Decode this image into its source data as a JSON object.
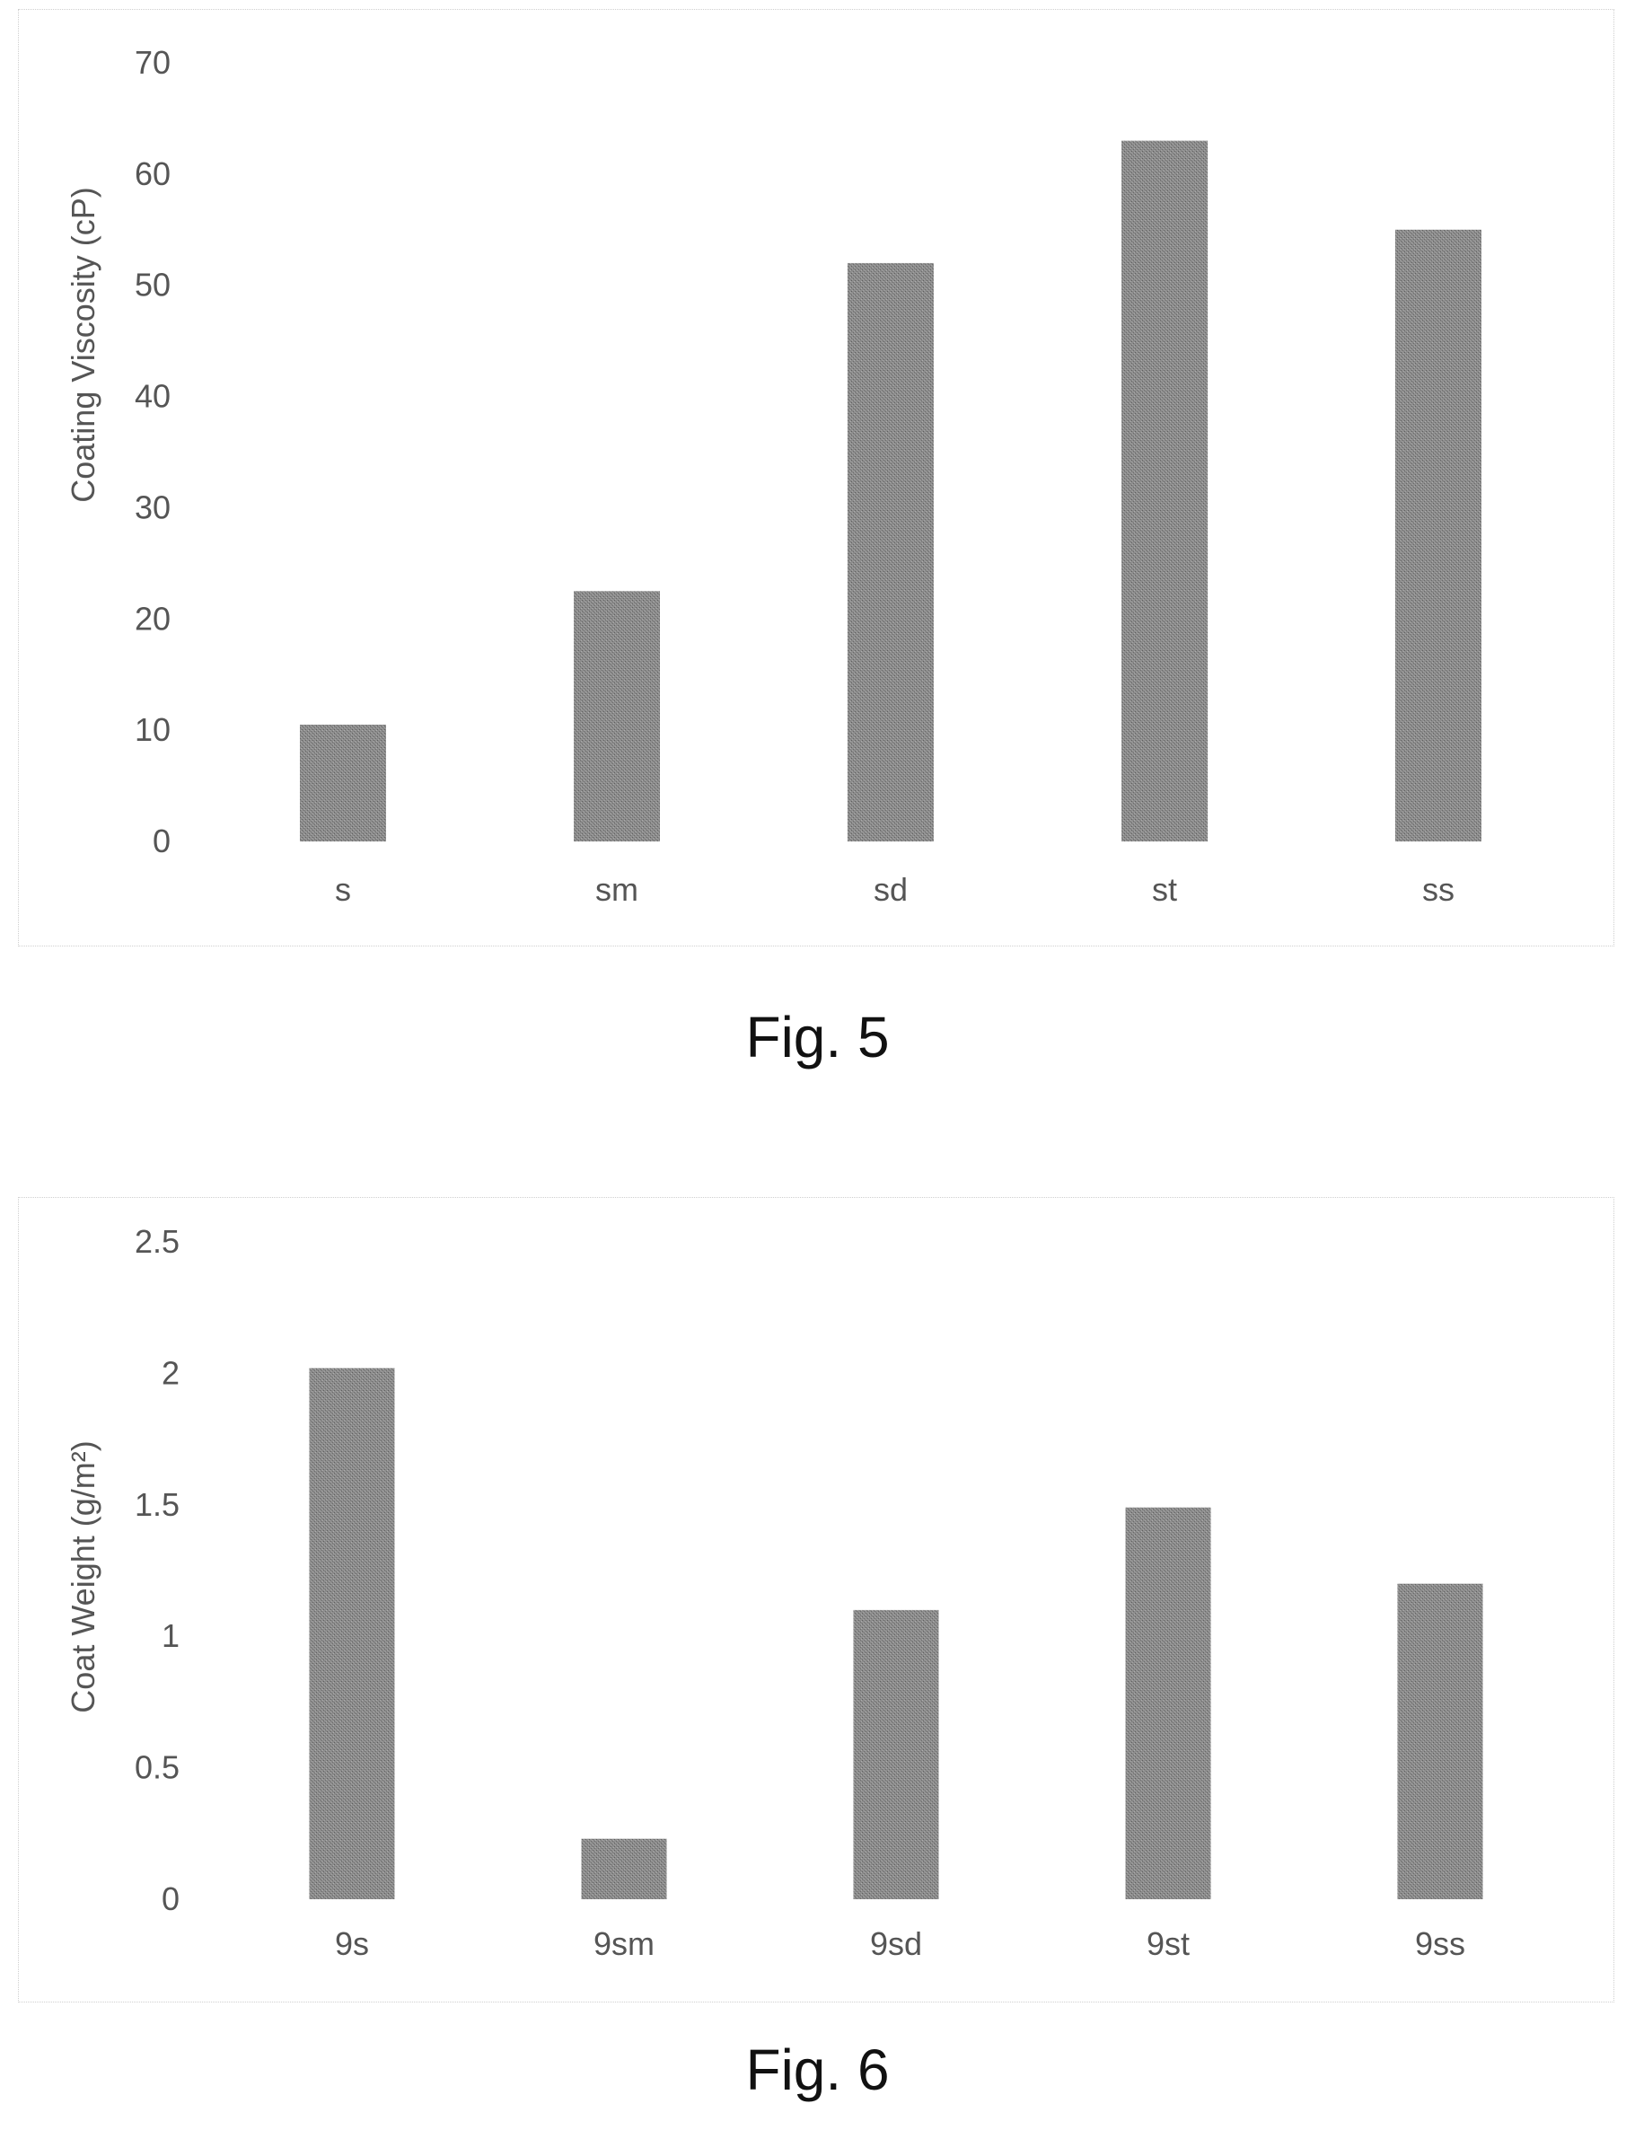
{
  "chart_data": [
    {
      "type": "bar",
      "title": "",
      "xlabel": "",
      "ylabel": "Coating Viscosity (cP)",
      "categories": [
        "s",
        "sm",
        "sd",
        "st",
        "ss"
      ],
      "values": [
        10.5,
        22.5,
        52,
        63,
        55
      ],
      "ylim": [
        0,
        70
      ],
      "yticks": [
        "0",
        "10",
        "20",
        "30",
        "40",
        "50",
        "60",
        "70"
      ],
      "grid": false,
      "bar_color": "#8a8a8a"
    },
    {
      "type": "bar",
      "title": "",
      "xlabel": "",
      "ylabel": "Coat Weight (g/m²)",
      "categories": [
        "9s",
        "9sm",
        "9sd",
        "9st",
        "9ss"
      ],
      "values": [
        2.02,
        0.23,
        1.1,
        1.49,
        1.2
      ],
      "ylim": [
        0,
        2.5
      ],
      "yticks": [
        "0",
        "0.5",
        "1",
        "1.5",
        "2",
        "2.5"
      ],
      "grid": false,
      "bar_color": "#8a8a8a"
    }
  ],
  "captions": {
    "fig5": "Fig. 5",
    "fig6": "Fig. 6"
  }
}
